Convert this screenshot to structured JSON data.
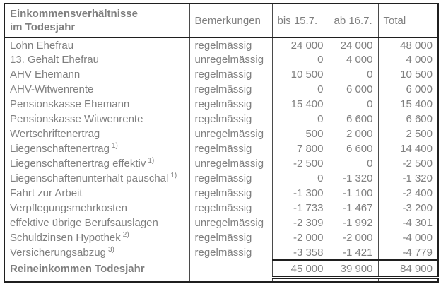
{
  "colors": {
    "text_gray": "#7f7f7f",
    "border_dark": "#1f1f1f",
    "border_inner": "#4a4a4a",
    "background": "#ffffff"
  },
  "table": {
    "title": {
      "line1": "Einkommensverhältnisse",
      "line2": "im Todesjahr"
    },
    "columns": {
      "remarks": "Bemerkungen",
      "until": "bis 15.7.",
      "from": "ab 16.7.",
      "total": "Total"
    },
    "rows": [
      {
        "label": "Lohn Ehefrau",
        "sup": "",
        "remark": "regelmässig",
        "until": "24 000",
        "from": "24 000",
        "total": "48 000"
      },
      {
        "label": "13. Gehalt Ehefrau",
        "sup": "",
        "remark": "unregelmässig",
        "until": "0",
        "from": "4 000",
        "total": "4 000"
      },
      {
        "label": "AHV Ehemann",
        "sup": "",
        "remark": "regelmässig",
        "until": "10 500",
        "from": "0",
        "total": "10 500"
      },
      {
        "label": "AHV-Witwenrente",
        "sup": "",
        "remark": "regelmässig",
        "until": "0",
        "from": "6 000",
        "total": "6 000"
      },
      {
        "label": "Pensionskasse Ehemann",
        "sup": "",
        "remark": "regelmässig",
        "until": "15 400",
        "from": "0",
        "total": "15 400"
      },
      {
        "label": "Pensionskasse Witwenrente",
        "sup": "",
        "remark": "regelmässig",
        "until": "0",
        "from": "6 600",
        "total": "6 600"
      },
      {
        "label": "Wertschriftenertrag",
        "sup": "",
        "remark": "unregelmässig",
        "until": "500",
        "from": "2 000",
        "total": "2 500"
      },
      {
        "label": "Liegenschaftenertrag",
        "sup": "1)",
        "remark": "regelmässig",
        "until": "7 800",
        "from": "6 600",
        "total": "14 400"
      },
      {
        "label": "Liegenschaftenertrag effektiv",
        "sup": "1)",
        "remark": "unregelmässig",
        "until": "-2 500",
        "from": "0",
        "total": "-2 500"
      },
      {
        "label": "Liegenschaftenunterhalt pauschal",
        "sup": "1)",
        "remark": "regelmässig",
        "until": "0",
        "from": "-1 320",
        "total": "-1 320"
      },
      {
        "label": "Fahrt zur Arbeit",
        "sup": "",
        "remark": "regelmässig",
        "until": "-1 300",
        "from": "-1 100",
        "total": "-2 400"
      },
      {
        "label": "Verpflegungsmehrkosten",
        "sup": "",
        "remark": "regelmässig",
        "until": "-1 733",
        "from": "-1 467",
        "total": "-3 200"
      },
      {
        "label": "effektive übrige Berufsauslagen",
        "sup": "",
        "remark": "unregelmässig",
        "until": "-2 309",
        "from": "-1 992",
        "total": "-4 301"
      },
      {
        "label": "Schuldzinsen Hypothek",
        "sup": "2)",
        "remark": "regelmässig",
        "until": "-2 000",
        "from": "-2 000",
        "total": "-4 000"
      },
      {
        "label": "Versicherungsabzug",
        "sup": "3)",
        "remark": "regelmässig",
        "until": "-3 358",
        "from": "-1 421",
        "total": "-4 779"
      }
    ],
    "total_row": {
      "label": "Reineinkommen Todesjahr",
      "remark": "",
      "until": "45 000",
      "from": "39 900",
      "total": "84 900"
    }
  }
}
